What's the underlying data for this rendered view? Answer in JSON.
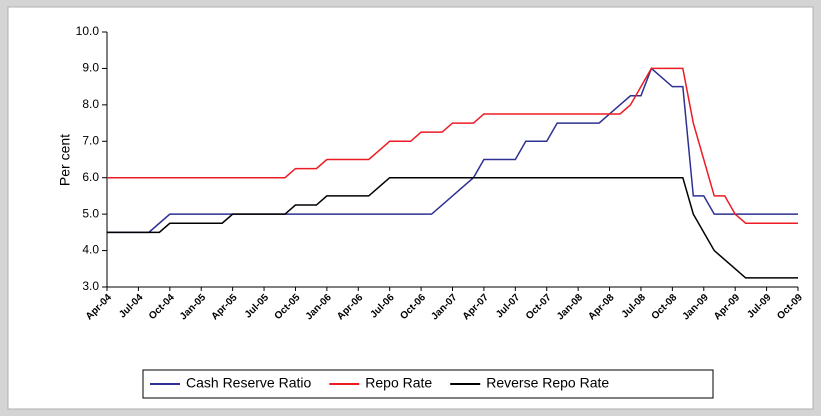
{
  "chart_data": {
    "type": "line",
    "y_label": "Per cent",
    "categories": [
      "Apr-04",
      null,
      null,
      "Jul-04",
      null,
      null,
      "Oct-04",
      null,
      null,
      "Jan-05",
      null,
      null,
      "Apr-05",
      null,
      null,
      "Jul-05",
      null,
      null,
      "Oct-05",
      null,
      null,
      "Jan-06",
      null,
      null,
      "Apr-06",
      null,
      null,
      "Jul-06",
      null,
      null,
      "Oct-06",
      null,
      null,
      "Jan-07",
      null,
      null,
      "Apr-07",
      null,
      null,
      "Jul-07",
      null,
      null,
      "Oct-07",
      null,
      null,
      "Jan-08",
      null,
      null,
      "Apr-08",
      null,
      null,
      "Jul-08",
      null,
      null,
      "Oct-08",
      null,
      null,
      "Jan-09",
      null,
      null,
      "Apr-09",
      null,
      null,
      "Jul-09",
      null,
      null,
      "Oct-09"
    ],
    "series": [
      {
        "name": "Cash Reserve Ratio",
        "color": "#2e3192",
        "values": [
          4.5,
          4.5,
          4.5,
          4.5,
          4.5,
          4.75,
          5.0,
          5.0,
          5.0,
          5.0,
          5.0,
          5.0,
          5.0,
          5.0,
          5.0,
          5.0,
          5.0,
          5.0,
          5.0,
          5.0,
          5.0,
          5.0,
          5.0,
          5.0,
          5.0,
          5.0,
          5.0,
          5.0,
          5.0,
          5.0,
          5.0,
          5.0,
          5.25,
          5.5,
          5.75,
          6.0,
          6.5,
          6.5,
          6.5,
          6.5,
          7.0,
          7.0,
          7.0,
          7.5,
          7.5,
          7.5,
          7.5,
          7.5,
          7.75,
          8.0,
          8.25,
          8.25,
          9.0,
          8.75,
          8.5,
          8.5,
          5.5,
          5.5,
          5.0,
          5.0,
          5.0,
          5.0,
          5.0,
          5.0,
          5.0,
          5.0,
          5.0
        ]
      },
      {
        "name": "Repo Rate",
        "color": "#ed1c24",
        "values": [
          6.0,
          6.0,
          6.0,
          6.0,
          6.0,
          6.0,
          6.0,
          6.0,
          6.0,
          6.0,
          6.0,
          6.0,
          6.0,
          6.0,
          6.0,
          6.0,
          6.0,
          6.0,
          6.25,
          6.25,
          6.25,
          6.5,
          6.5,
          6.5,
          6.5,
          6.5,
          6.75,
          7.0,
          7.0,
          7.0,
          7.25,
          7.25,
          7.25,
          7.5,
          7.5,
          7.5,
          7.75,
          7.75,
          7.75,
          7.75,
          7.75,
          7.75,
          7.75,
          7.75,
          7.75,
          7.75,
          7.75,
          7.75,
          7.75,
          7.75,
          8.0,
          8.5,
          9.0,
          9.0,
          9.0,
          9.0,
          7.5,
          6.5,
          5.5,
          5.5,
          5.0,
          4.75,
          4.75,
          4.75,
          4.75,
          4.75,
          4.75
        ]
      },
      {
        "name": "Reverse Repo Rate",
        "color": "#000000",
        "values": [
          4.5,
          4.5,
          4.5,
          4.5,
          4.5,
          4.5,
          4.75,
          4.75,
          4.75,
          4.75,
          4.75,
          4.75,
          5.0,
          5.0,
          5.0,
          5.0,
          5.0,
          5.0,
          5.25,
          5.25,
          5.25,
          5.5,
          5.5,
          5.5,
          5.5,
          5.5,
          5.75,
          6.0,
          6.0,
          6.0,
          6.0,
          6.0,
          6.0,
          6.0,
          6.0,
          6.0,
          6.0,
          6.0,
          6.0,
          6.0,
          6.0,
          6.0,
          6.0,
          6.0,
          6.0,
          6.0,
          6.0,
          6.0,
          6.0,
          6.0,
          6.0,
          6.0,
          6.0,
          6.0,
          6.0,
          6.0,
          5.0,
          4.5,
          4.0,
          3.75,
          3.5,
          3.25,
          3.25,
          3.25,
          3.25,
          3.25,
          3.25
        ]
      }
    ],
    "ylim": [
      3,
      10
    ],
    "yticks": [
      {
        "value": 3,
        "label": "3.0"
      },
      {
        "value": 4,
        "label": "4.0"
      },
      {
        "value": 5,
        "label": "5.0"
      },
      {
        "value": 6,
        "label": "6.0"
      },
      {
        "value": 7,
        "label": "7.0"
      },
      {
        "value": 8,
        "label": "8.0"
      },
      {
        "value": 9,
        "label": "9.0"
      },
      {
        "value": 10,
        "label": "10.0"
      }
    ],
    "grid": false,
    "legend": "bottom"
  }
}
